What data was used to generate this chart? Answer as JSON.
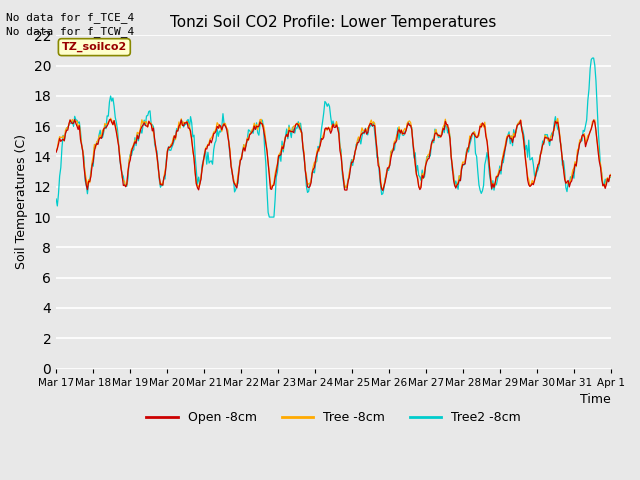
{
  "title": "Tonzi Soil CO2 Profile: Lower Temperatures",
  "ylabel": "Soil Temperatures (C)",
  "xlabel": "Time",
  "ylim": [
    0,
    22
  ],
  "yticks": [
    0,
    2,
    4,
    6,
    8,
    10,
    12,
    14,
    16,
    18,
    20,
    22
  ],
  "note1": "No data for f_TCE_4",
  "note2": "No data for f_TCW_4",
  "legend_label": "TZ_soilco2",
  "line_labels": [
    "Open -8cm",
    "Tree -8cm",
    "Tree2 -8cm"
  ],
  "line_colors": [
    "#cc0000",
    "#ffaa00",
    "#00cccc"
  ],
  "background_color": "#e8e8e8",
  "plot_bg_color": "#e8e8e8",
  "grid_color": "#ffffff",
  "xtick_labels": [
    "Mar 17",
    "Mar 18",
    "Mar 19",
    "Mar 20",
    "Mar 21",
    "Mar 22",
    "Mar 23",
    "Mar 24",
    "Mar 25",
    "Mar 26",
    "Mar 27",
    "Mar 28",
    "Mar 29",
    "Mar 30",
    "Mar 31",
    "Apr 1"
  ],
  "n_points": 480,
  "seed": 7
}
